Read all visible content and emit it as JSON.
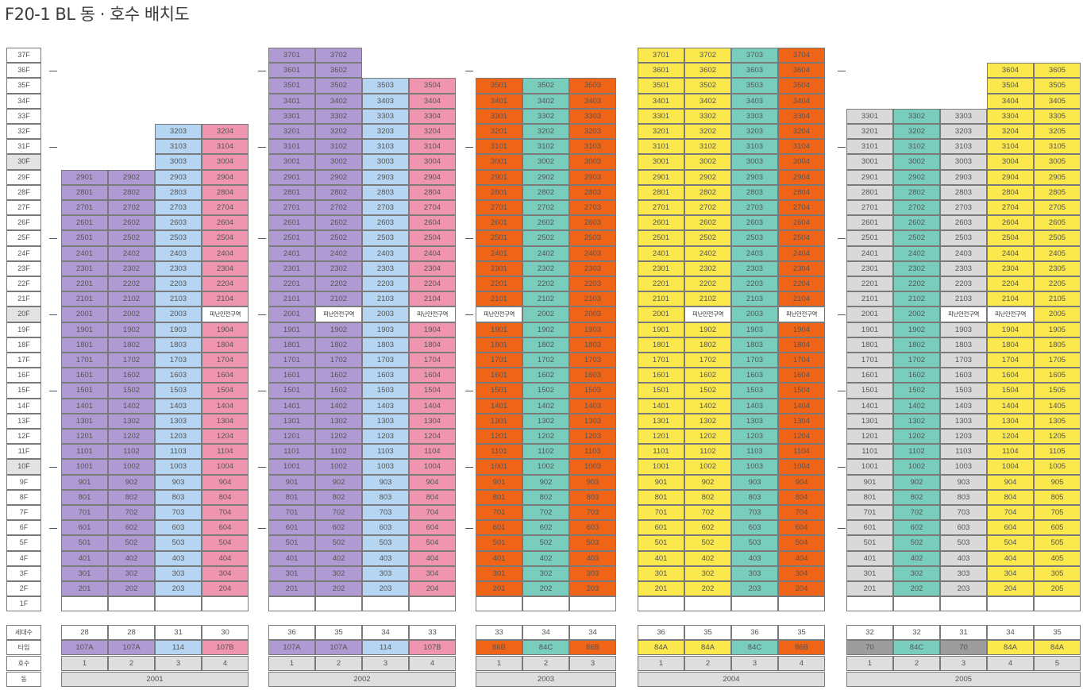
{
  "title": "F20-1 BL 동 · 호수 배치도",
  "colors": {
    "purple": "#b09ad3",
    "blue": "#b5d5f3",
    "pink": "#f095b0",
    "orange": "#f06418",
    "teal": "#78cdbc",
    "yellow": "#fbe84c",
    "gray": "#d9d9d9",
    "darkgray": "#9d9d9d",
    "refuge_bg": "#ffffff",
    "floor_gray": "#e3e3e3"
  },
  "floors": [
    "37F",
    "36F",
    "35F",
    "34F",
    "33F",
    "32F",
    "31F",
    "30F",
    "29F",
    "28F",
    "27F",
    "26F",
    "25F",
    "24F",
    "23F",
    "22F",
    "21F",
    "20F",
    "19F",
    "18F",
    "17F",
    "16F",
    "15F",
    "14F",
    "13F",
    "12F",
    "11F",
    "10F",
    "9F",
    "8F",
    "7F",
    "6F",
    "5F",
    "4F",
    "3F",
    "2F",
    "1F"
  ],
  "gray_floors": [
    "30F",
    "20F",
    "10F"
  ],
  "refuge_label": "피난안전구역",
  "legend_labels": {
    "households": "세대수",
    "type": "타입",
    "line": "호수",
    "dong": "동"
  },
  "buildings": [
    {
      "dong": "2001",
      "columns": [
        {
          "line": "1",
          "top": 29,
          "color": "purple",
          "households": "28",
          "type": "107A",
          "type_color": "purple",
          "refuge": false
        },
        {
          "line": "2",
          "top": 29,
          "color": "purple",
          "households": "28",
          "type": "107A",
          "type_color": "purple",
          "refuge": false
        },
        {
          "line": "3",
          "top": 32,
          "color": "blue",
          "households": "31",
          "type": "114",
          "type_color": "blue",
          "refuge": false
        },
        {
          "line": "4",
          "top": 32,
          "color": "pink",
          "households": "30",
          "type": "107B",
          "type_color": "pink",
          "refuge": true
        }
      ]
    },
    {
      "dong": "2002",
      "columns": [
        {
          "line": "1",
          "top": 37,
          "color": "purple",
          "households": "36",
          "type": "107A",
          "type_color": "purple",
          "refuge": false
        },
        {
          "line": "2",
          "top": 37,
          "color": "purple",
          "households": "35",
          "type": "107A",
          "type_color": "purple",
          "refuge": true
        },
        {
          "line": "3",
          "top": 35,
          "color": "blue",
          "households": "34",
          "type": "114",
          "type_color": "blue",
          "refuge": false
        },
        {
          "line": "4",
          "top": 35,
          "color": "pink",
          "households": "33",
          "type": "107B",
          "type_color": "pink",
          "refuge": true
        }
      ]
    },
    {
      "dong": "2003",
      "columns": [
        {
          "line": "1",
          "top": 35,
          "color": "orange",
          "households": "33",
          "type": "86B",
          "type_color": "orange",
          "refuge": true
        },
        {
          "line": "2",
          "top": 35,
          "color": "teal",
          "households": "34",
          "type": "84C",
          "type_color": "teal",
          "refuge": false
        },
        {
          "line": "3",
          "top": 35,
          "color": "orange",
          "households": "34",
          "type": "86B",
          "type_color": "orange",
          "refuge": false
        }
      ]
    },
    {
      "dong": "2004",
      "columns": [
        {
          "line": "1",
          "top": 37,
          "color": "yellow",
          "households": "36",
          "type": "84A",
          "type_color": "yellow",
          "refuge": false
        },
        {
          "line": "2",
          "top": 37,
          "color": "yellow",
          "households": "35",
          "type": "84A",
          "type_color": "yellow",
          "refuge": true
        },
        {
          "line": "3",
          "top": 37,
          "color": "teal",
          "households": "36",
          "type": "84C",
          "type_color": "teal",
          "refuge": false
        },
        {
          "line": "4",
          "top": 37,
          "color": "orange",
          "households": "35",
          "type": "86B",
          "type_color": "orange",
          "refuge": true
        }
      ]
    },
    {
      "dong": "2005",
      "columns": [
        {
          "line": "1",
          "top": 33,
          "color": "gray",
          "households": "32",
          "type": "70",
          "type_color": "darkgray",
          "refuge": false
        },
        {
          "line": "2",
          "top": 33,
          "color": "teal",
          "households": "32",
          "type": "84C",
          "type_color": "teal",
          "refuge": false
        },
        {
          "line": "3",
          "top": 33,
          "color": "gray",
          "households": "31",
          "type": "70",
          "type_color": "darkgray",
          "refuge": true
        },
        {
          "line": "4",
          "top": 36,
          "color": "yellow",
          "households": "34",
          "type": "84A",
          "type_color": "yellow",
          "refuge": true
        },
        {
          "line": "5",
          "top": 36,
          "color": "yellow",
          "households": "35",
          "type": "84A",
          "type_color": "yellow",
          "refuge": false
        }
      ]
    }
  ]
}
